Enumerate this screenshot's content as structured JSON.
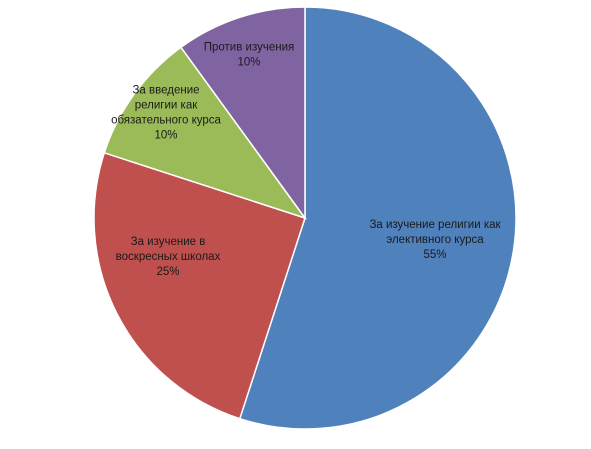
{
  "chart_data": {
    "type": "pie",
    "start_angle_deg": 0,
    "direction": "clockwise",
    "slices": [
      {
        "label_lines": [
          "За изучение религии как",
          "элективного курса"
        ],
        "value": 55,
        "value_label": "55%",
        "color": "#4f81bd"
      },
      {
        "label_lines": [
          "За изучение в",
          "воскресных школах"
        ],
        "value": 25,
        "value_label": "25%",
        "color": "#c0504d"
      },
      {
        "label_lines": [
          "За введение",
          "религии как",
          "обязательного курса"
        ],
        "value": 10,
        "value_label": "10%",
        "color": "#9bbb59"
      },
      {
        "label_lines": [
          "Против изучения"
        ],
        "value": 10,
        "value_label": "10%",
        "color": "#8064a2"
      }
    ]
  }
}
